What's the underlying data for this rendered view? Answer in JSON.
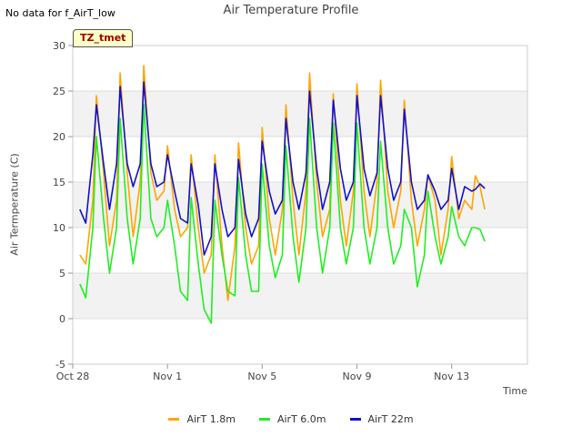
{
  "notice": "No data for f_AirT_low",
  "badge": "TZ_tmet",
  "colors": {
    "s1": "#ffa500",
    "s2": "#22ee22",
    "s3": "#1111cc",
    "band": "#f2f2f2",
    "grid": "#dddddd"
  },
  "chart_data": {
    "type": "line",
    "title": "Air Temperature Profile",
    "xlabel": "Time",
    "ylabel": "Air Termperature (C)",
    "ylim": [
      -5,
      30
    ],
    "xlim": [
      0,
      19.2
    ],
    "x_ticks": [
      {
        "x": 0,
        "label": "Oct 28"
      },
      {
        "x": 4,
        "label": "Nov 1"
      },
      {
        "x": 8,
        "label": "Nov 5"
      },
      {
        "x": 12,
        "label": "Nov 9"
      },
      {
        "x": 16,
        "label": "Nov 13"
      }
    ],
    "y_ticks": [
      -5,
      0,
      5,
      10,
      15,
      20,
      25,
      30
    ],
    "x_unit": "days since Oct 28",
    "grid": true,
    "legend_position": "bottom",
    "series": [
      {
        "name": "AirT 1.8m",
        "color": "#ffa500",
        "x": [
          0.3,
          0.55,
          0.85,
          1.0,
          1.3,
          1.55,
          1.85,
          2.0,
          2.3,
          2.55,
          2.85,
          3.0,
          3.3,
          3.55,
          3.85,
          4.0,
          4.3,
          4.55,
          4.85,
          5.0,
          5.3,
          5.55,
          5.85,
          6.0,
          6.3,
          6.55,
          6.85,
          7.0,
          7.3,
          7.55,
          7.85,
          8.0,
          8.3,
          8.55,
          8.85,
          9.0,
          9.3,
          9.55,
          9.85,
          10.0,
          10.3,
          10.55,
          10.85,
          11.0,
          11.3,
          11.55,
          11.85,
          12.0,
          12.3,
          12.55,
          12.85,
          13.0,
          13.3,
          13.55,
          13.85,
          14.0,
          14.3,
          14.55,
          14.85,
          15.0,
          15.3,
          15.55,
          15.85,
          16.0,
          16.3,
          16.55,
          16.85,
          17.0,
          17.2,
          17.4
        ],
        "y": [
          7.0,
          6.0,
          13.0,
          24.5,
          16.0,
          8.0,
          13.0,
          27.0,
          16.0,
          9.0,
          15.0,
          27.8,
          16.0,
          13.0,
          14.0,
          19.0,
          12.0,
          9.0,
          10.0,
          18.0,
          10.0,
          5.0,
          7.0,
          18.0,
          8.0,
          2.0,
          8.0,
          19.3,
          10.0,
          6.0,
          8.0,
          21.0,
          11.0,
          7.0,
          12.0,
          23.5,
          13.0,
          7.0,
          14.0,
          27.0,
          15.0,
          9.0,
          12.0,
          24.7,
          13.0,
          8.0,
          14.0,
          25.8,
          14.0,
          9.0,
          15.0,
          26.2,
          14.0,
          10.0,
          14.0,
          24.0,
          13.0,
          8.0,
          12.0,
          15.8,
          13.0,
          7.0,
          12.0,
          17.8,
          11.0,
          13.0,
          12.0,
          15.7,
          14.5,
          12.0
        ]
      },
      {
        "name": "AirT 6.0m",
        "color": "#22ee22",
        "x": [
          0.3,
          0.55,
          0.85,
          1.0,
          1.3,
          1.55,
          1.85,
          2.0,
          2.3,
          2.55,
          2.85,
          3.0,
          3.3,
          3.55,
          3.85,
          4.0,
          4.3,
          4.55,
          4.85,
          5.0,
          5.3,
          5.55,
          5.85,
          6.0,
          6.3,
          6.55,
          6.85,
          7.0,
          7.3,
          7.55,
          7.85,
          8.0,
          8.3,
          8.55,
          8.85,
          9.0,
          9.3,
          9.55,
          9.85,
          10.0,
          10.3,
          10.55,
          10.85,
          11.0,
          11.3,
          11.55,
          11.85,
          12.0,
          12.3,
          12.55,
          12.85,
          13.0,
          13.3,
          13.55,
          13.85,
          14.0,
          14.3,
          14.55,
          14.85,
          15.0,
          15.3,
          15.55,
          15.85,
          16.0,
          16.3,
          16.55,
          16.85,
          17.0,
          17.2,
          17.4
        ],
        "y": [
          3.8,
          2.3,
          10.0,
          20.0,
          11.0,
          5.0,
          10.0,
          22.0,
          11.0,
          6.0,
          11.0,
          23.5,
          11.0,
          9.0,
          10.0,
          13.0,
          8.0,
          3.0,
          2.0,
          13.3,
          6.0,
          1.0,
          -0.5,
          13.0,
          7.0,
          3.0,
          2.5,
          15.5,
          7.0,
          3.0,
          3.0,
          17.0,
          8.0,
          4.5,
          7.0,
          19.0,
          9.0,
          4.0,
          10.0,
          22.0,
          10.0,
          5.0,
          10.0,
          21.5,
          10.0,
          6.0,
          10.0,
          21.5,
          10.0,
          6.0,
          10.0,
          19.5,
          10.0,
          6.0,
          8.0,
          12.0,
          10.0,
          3.5,
          7.0,
          14.0,
          9.0,
          6.0,
          9.0,
          12.3,
          9.0,
          8.0,
          10.0,
          10.0,
          9.8,
          8.5
        ]
      },
      {
        "name": "AirT 22m",
        "color": "#1111cc",
        "x": [
          0.3,
          0.55,
          0.85,
          1.0,
          1.3,
          1.55,
          1.85,
          2.0,
          2.3,
          2.55,
          2.85,
          3.0,
          3.3,
          3.55,
          3.85,
          4.0,
          4.3,
          4.55,
          4.85,
          5.0,
          5.3,
          5.55,
          5.85,
          6.0,
          6.3,
          6.55,
          6.85,
          7.0,
          7.3,
          7.55,
          7.85,
          8.0,
          8.3,
          8.55,
          8.85,
          9.0,
          9.3,
          9.55,
          9.85,
          10.0,
          10.3,
          10.55,
          10.85,
          11.0,
          11.3,
          11.55,
          11.85,
          12.0,
          12.3,
          12.55,
          12.85,
          13.0,
          13.3,
          13.55,
          13.85,
          14.0,
          14.3,
          14.55,
          14.85,
          15.0,
          15.3,
          15.55,
          15.85,
          16.0,
          16.3,
          16.55,
          16.85,
          17.0,
          17.2,
          17.4
        ],
        "y": [
          12.0,
          10.5,
          18.0,
          23.5,
          17.0,
          12.0,
          17.0,
          25.5,
          17.0,
          14.5,
          17.0,
          26.0,
          17.0,
          14.5,
          15.0,
          18.0,
          14.0,
          11.0,
          10.5,
          17.0,
          12.5,
          7.0,
          9.0,
          17.0,
          12.0,
          9.0,
          10.0,
          17.5,
          11.5,
          9.0,
          11.0,
          19.5,
          14.0,
          11.5,
          13.0,
          22.0,
          15.0,
          12.0,
          16.0,
          25.0,
          16.5,
          12.0,
          15.0,
          24.0,
          16.5,
          13.0,
          15.0,
          24.5,
          16.5,
          13.5,
          16.0,
          24.5,
          16.5,
          13.0,
          15.0,
          23.0,
          15.0,
          12.0,
          13.0,
          15.8,
          14.0,
          12.0,
          13.0,
          16.5,
          12.0,
          14.5,
          14.0,
          14.2,
          14.8,
          14.3
        ]
      }
    ]
  }
}
